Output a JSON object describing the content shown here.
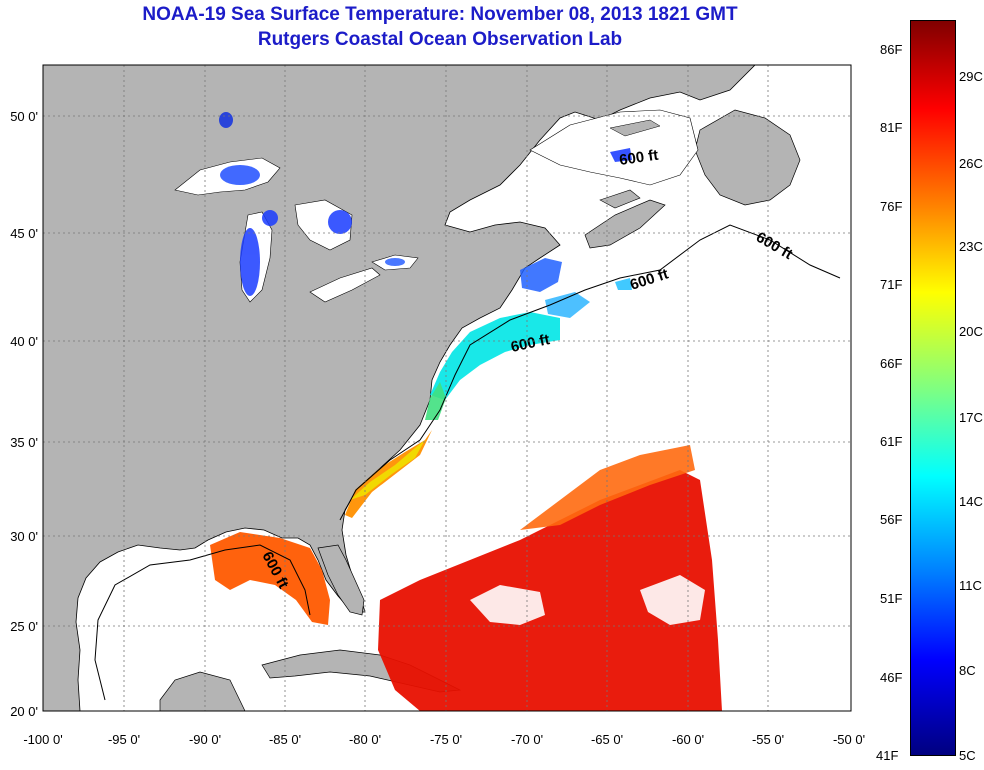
{
  "title": "NOAA-19 Sea Surface Temperature:  November 08, 2013 1821 GMT",
  "subtitle": "Rutgers Coastal Ocean Observation Lab",
  "contour_label": "600 ft",
  "lon_labels": [
    "-100 0'",
    "-95 0'",
    "-90 0'",
    "-85 0'",
    "-80 0'",
    "-75 0'",
    "-70 0'",
    "-65 0'",
    "-60 0'",
    "-55 0'",
    "-50 0'"
  ],
  "lat_labels": [
    "50 0'",
    "45 0'",
    "40 0'",
    "35 0'",
    "30 0'",
    "25 0'",
    "20 0'"
  ],
  "colorbar": {
    "f_labels": [
      "86F",
      "81F",
      "76F",
      "71F",
      "66F",
      "61F",
      "56F",
      "51F",
      "46F",
      "41F"
    ],
    "c_labels": [
      "29C",
      "26C",
      "23C",
      "20C",
      "17C",
      "14C",
      "11C",
      "8C",
      "5C"
    ],
    "colors": [
      "#000080",
      "#0000ff",
      "#0080ff",
      "#00ffff",
      "#80ff80",
      "#ffff00",
      "#ff8000",
      "#ff0000",
      "#800000"
    ]
  },
  "colors": {
    "land": "#b4b4b4",
    "ocean_nodata": "#ffffff",
    "title": "#1c1cc8"
  }
}
